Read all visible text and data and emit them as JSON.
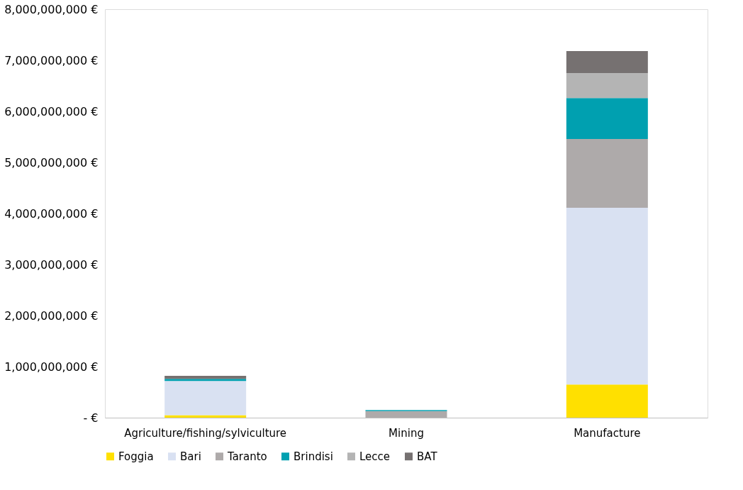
{
  "chart_data": {
    "type": "bar",
    "stacked": true,
    "categories": [
      "Agriculture/fishing/sylviculture",
      "Mining",
      "Manufacture"
    ],
    "series": [
      {
        "name": "Foggia",
        "color": "#ffe000",
        "values": [
          50000000,
          null,
          650000000
        ]
      },
      {
        "name": "Bari",
        "color": "#d9e1f2",
        "values": [
          670000000,
          null,
          3460000000
        ]
      },
      {
        "name": "Taranto",
        "color": "#aeaaaa",
        "values": [
          null,
          130000000,
          1350000000
        ]
      },
      {
        "name": "Brindisi",
        "color": "#00a0b0",
        "values": [
          40000000,
          20000000,
          800000000
        ]
      },
      {
        "name": "Lecce",
        "color": "#b4b4b4",
        "values": [
          null,
          null,
          490000000
        ]
      },
      {
        "name": "BAT",
        "color": "#767171",
        "values": [
          60000000,
          null,
          430000000
        ]
      }
    ],
    "ylim": [
      0,
      8000000000
    ],
    "yticks": [
      {
        "value": 0,
        "label": "-  €"
      },
      {
        "value": 1000000000,
        "label": "1,000,000,000 €"
      },
      {
        "value": 2000000000,
        "label": "2,000,000,000 €"
      },
      {
        "value": 3000000000,
        "label": "3,000,000,000 €"
      },
      {
        "value": 4000000000,
        "label": "4,000,000,000 €"
      },
      {
        "value": 5000000000,
        "label": "5,000,000,000 €"
      },
      {
        "value": 6000000000,
        "label": "6,000,000,000 €"
      },
      {
        "value": 7000000000,
        "label": "7,000,000,000 €"
      },
      {
        "value": 8000000000,
        "label": "8,000,000,000 €"
      }
    ],
    "grid": false,
    "legend": "bottom"
  }
}
